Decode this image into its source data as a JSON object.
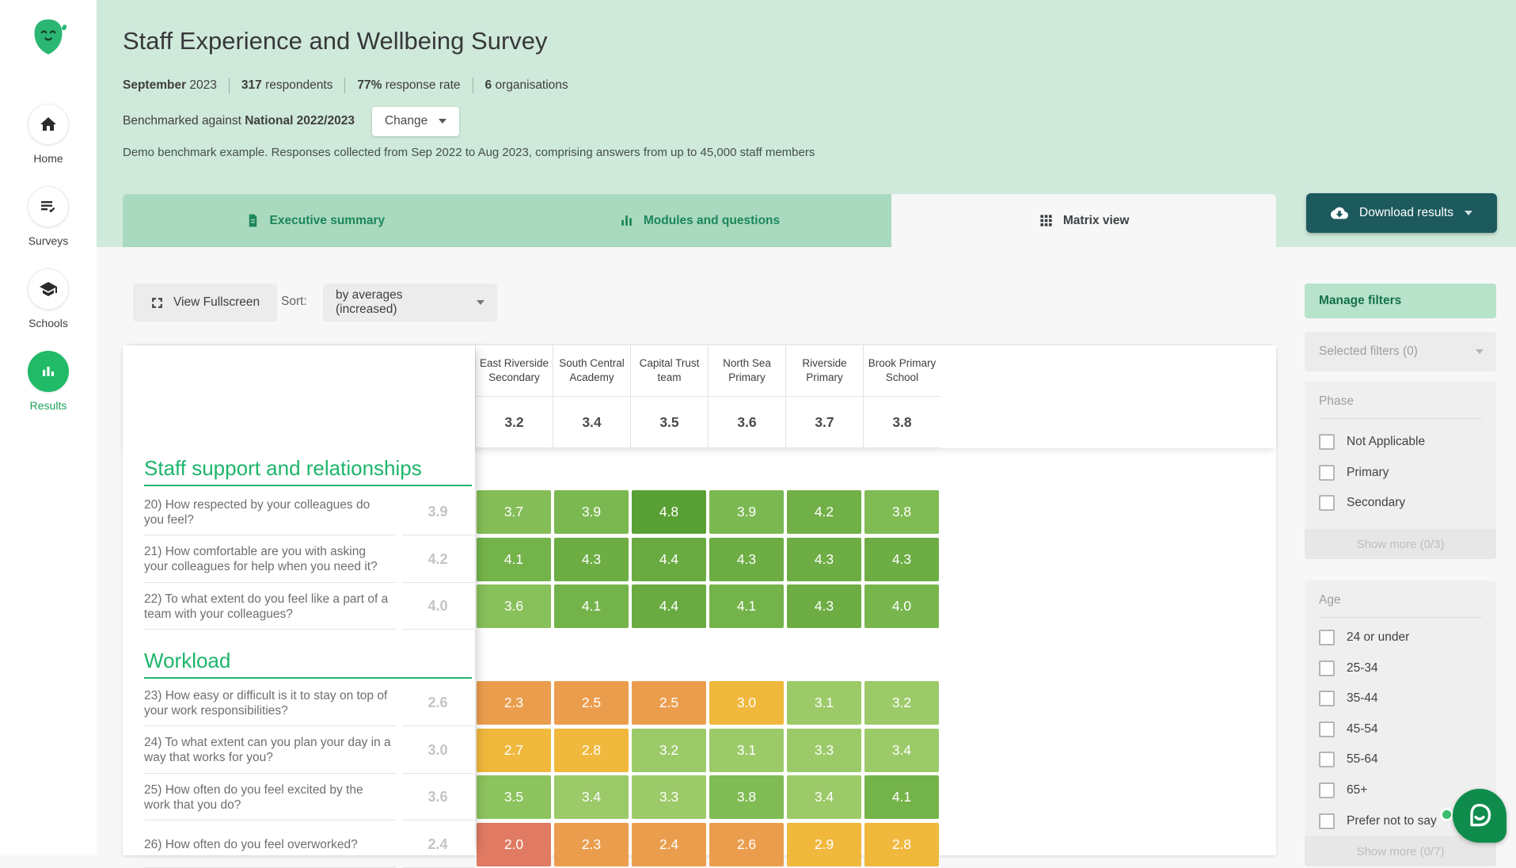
{
  "sidebar": {
    "items": [
      {
        "label": "Home",
        "icon": "home-icon",
        "active": false
      },
      {
        "label": "Surveys",
        "icon": "surveys-icon",
        "active": false
      },
      {
        "label": "Schools",
        "icon": "schools-icon",
        "active": false
      },
      {
        "label": "Results",
        "icon": "results-icon",
        "active": true
      }
    ]
  },
  "header": {
    "title": "Staff Experience and Wellbeing Survey",
    "meta": [
      {
        "bold": "September",
        "rest": " 2023"
      },
      {
        "bold": "317",
        "rest": " respondents"
      },
      {
        "bold": "77%",
        "rest": " response rate"
      },
      {
        "bold": "6",
        "rest": " organisations"
      }
    ],
    "benchmark_prefix": "Benchmarked against ",
    "benchmark_value": "National 2022/2023",
    "change_label": "Change",
    "description": "Demo benchmark example. Responses collected from Sep 2022 to Aug 2023, comprising answers from up to 45,000 staff members"
  },
  "tabs": [
    {
      "label": "Executive summary",
      "icon": "document-icon",
      "active": false
    },
    {
      "label": "Modules and questions",
      "icon": "bar-chart-icon",
      "active": false
    },
    {
      "label": "Matrix view",
      "icon": "grid-icon",
      "active": true
    }
  ],
  "download_label": "Download results",
  "toolbar": {
    "fullscreen_label": "View Fullscreen",
    "sort_label": "Sort:",
    "sort_value": "by averages (increased)"
  },
  "matrix": {
    "type": "heatmap",
    "columns": [
      {
        "name": "East Riverside Secondary",
        "average": "3.2"
      },
      {
        "name": "South Central Academy",
        "average": "3.4"
      },
      {
        "name": "Capital Trust team",
        "average": "3.5"
      },
      {
        "name": "North Sea Primary",
        "average": "3.6"
      },
      {
        "name": "Riverside Primary",
        "average": "3.7"
      },
      {
        "name": "Brook Primary School",
        "average": "3.8"
      }
    ],
    "sections": [
      {
        "title": "Staff support and relationships",
        "rows": [
          {
            "question": "20) How respected by your colleagues do you feel?",
            "average": "3.9",
            "values": [
              3.7,
              3.9,
              4.8,
              3.9,
              4.2,
              3.8
            ]
          },
          {
            "question": "21) How comfortable are you with asking your colleagues for help when you need it?",
            "average": "4.2",
            "values": [
              4.1,
              4.3,
              4.4,
              4.3,
              4.3,
              4.3
            ]
          },
          {
            "question": "22) To what extent do you feel like a part of a team with your colleagues?",
            "average": "4.0",
            "values": [
              3.6,
              4.1,
              4.4,
              4.1,
              4.3,
              4.0
            ]
          }
        ]
      },
      {
        "title": "Workload",
        "rows": [
          {
            "question": "23) How easy or difficult is it to stay on top of your work responsibilities?",
            "average": "2.6",
            "values": [
              2.3,
              2.5,
              2.5,
              3.0,
              3.1,
              3.2
            ]
          },
          {
            "question": "24) To what extent can you plan your day in a way that works for you?",
            "average": "3.0",
            "values": [
              2.7,
              2.8,
              3.2,
              3.1,
              3.3,
              3.4
            ]
          },
          {
            "question": "25) How often do you feel excited by the work that you do?",
            "average": "3.6",
            "values": [
              3.5,
              3.4,
              3.3,
              3.8,
              3.4,
              4.1
            ]
          },
          {
            "question": "26) How often do you feel overworked?",
            "average": "2.4",
            "values": [
              2.0,
              2.3,
              2.4,
              2.6,
              2.9,
              2.8
            ]
          }
        ]
      }
    ],
    "color_scale": {
      "bands": [
        {
          "max": 2.2,
          "color": "#e07a63"
        },
        {
          "max": 2.7,
          "color": "#eb9d4e"
        },
        {
          "max": 3.05,
          "color": "#f0b83d"
        },
        {
          "max": 3.45,
          "color": "#9cca69"
        }
      ],
      "gradient": {
        "from": 3.45,
        "to": 4.8,
        "color_from": "#8ec45f",
        "color_to": "#59a034"
      }
    }
  },
  "filters": {
    "manage_label": "Manage filters",
    "selected_label": "Selected filters (0)",
    "groups": [
      {
        "title": "Phase",
        "options": [
          "Not Applicable",
          "Primary",
          "Secondary"
        ],
        "show_more": "Show more (0/3)"
      },
      {
        "title": "Age",
        "options": [
          "24 or under",
          "25-34",
          "35-44",
          "45-54",
          "55-64",
          "65+",
          "Prefer not to say"
        ],
        "show_more": "Show more (0/7)"
      }
    ]
  },
  "colors": {
    "brand_green": "#21ba67",
    "mint_background": "#cfe9db",
    "tab_inactive": "#a9dabf",
    "tab_text_green": "#1c8659",
    "download_teal": "#1d5a5e",
    "section_title_green": "#1db56a",
    "manage_filters_bg": "#b7e3cb",
    "chat_green": "#0f8c4c"
  }
}
